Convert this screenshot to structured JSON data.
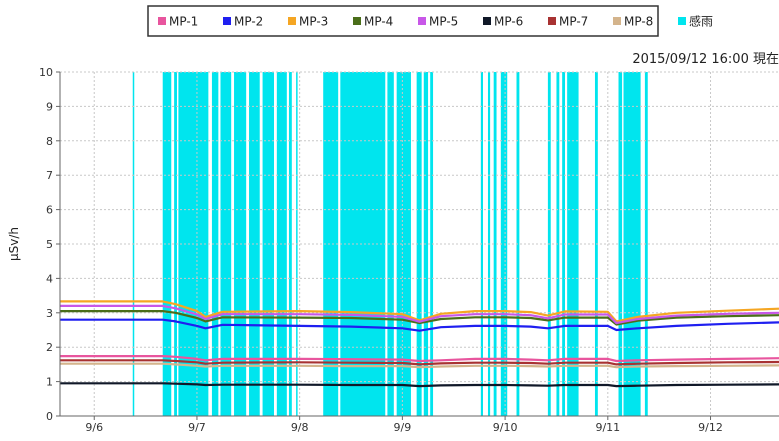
{
  "chart_data": {
    "type": "line",
    "ylabel": "μSv/h",
    "timestamp_label": "2015/09/12 16:00 現在",
    "ylim": [
      0,
      10
    ],
    "yticks": [
      0,
      1,
      2,
      3,
      4,
      5,
      6,
      7,
      8,
      9,
      10
    ],
    "xlim": [
      "2015-09-05T16:00",
      "2015-09-12T16:00"
    ],
    "xticks": [
      {
        "label": "9/6",
        "at": "2015-09-06T00:00"
      },
      {
        "label": "9/7",
        "at": "2015-09-07T00:00"
      },
      {
        "label": "9/8",
        "at": "2015-09-08T00:00"
      },
      {
        "label": "9/9",
        "at": "2015-09-09T00:00"
      },
      {
        "label": "9/10",
        "at": "2015-09-10T00:00"
      },
      {
        "label": "9/11",
        "at": "2015-09-11T00:00"
      },
      {
        "label": "9/12",
        "at": "2015-09-12T00:00"
      }
    ],
    "grid": true,
    "legend_position": "top",
    "x": [
      "2015-09-05T16:00",
      "2015-09-06T16:00",
      "2015-09-06T19:00",
      "2015-09-07T00:00",
      "2015-09-07T02:00",
      "2015-09-07T06:00",
      "2015-09-08T00:00",
      "2015-09-08T12:00",
      "2015-09-09T00:00",
      "2015-09-09T04:00",
      "2015-09-09T09:00",
      "2015-09-09T17:00",
      "2015-09-10T00:00",
      "2015-09-10T06:00",
      "2015-09-10T10:00",
      "2015-09-10T14:00",
      "2015-09-11T00:00",
      "2015-09-11T02:00",
      "2015-09-11T07:00",
      "2015-09-11T16:00",
      "2015-09-12T04:00",
      "2015-09-12T16:00"
    ],
    "series": [
      {
        "name": "MP-1",
        "color": "#e8559e",
        "values": [
          1.74,
          1.74,
          1.72,
          1.66,
          1.62,
          1.66,
          1.66,
          1.65,
          1.64,
          1.6,
          1.62,
          1.66,
          1.66,
          1.64,
          1.62,
          1.66,
          1.66,
          1.6,
          1.62,
          1.64,
          1.66,
          1.68
        ]
      },
      {
        "name": "MP-2",
        "color": "#1f1ff0",
        "values": [
          2.8,
          2.8,
          2.75,
          2.62,
          2.55,
          2.65,
          2.62,
          2.6,
          2.55,
          2.48,
          2.58,
          2.62,
          2.62,
          2.6,
          2.55,
          2.62,
          2.62,
          2.5,
          2.55,
          2.62,
          2.68,
          2.72
        ]
      },
      {
        "name": "MP-3",
        "color": "#f5a623",
        "values": [
          3.33,
          3.33,
          3.25,
          3.05,
          2.88,
          3.03,
          3.05,
          3.02,
          2.96,
          2.78,
          2.97,
          3.05,
          3.05,
          3.02,
          2.92,
          3.04,
          3.03,
          2.75,
          2.88,
          3.0,
          3.06,
          3.12
        ]
      },
      {
        "name": "MP-4",
        "color": "#4a6e1a",
        "values": [
          3.05,
          3.05,
          3.0,
          2.85,
          2.75,
          2.87,
          2.86,
          2.85,
          2.8,
          2.7,
          2.82,
          2.87,
          2.87,
          2.85,
          2.78,
          2.86,
          2.86,
          2.66,
          2.77,
          2.86,
          2.9,
          2.93
        ]
      },
      {
        "name": "MP-5",
        "color": "#c857e8",
        "values": [
          3.2,
          3.2,
          3.13,
          2.95,
          2.82,
          2.96,
          2.96,
          2.94,
          2.88,
          2.74,
          2.9,
          2.96,
          2.96,
          2.93,
          2.84,
          2.95,
          2.95,
          2.7,
          2.82,
          2.92,
          2.97,
          3.0
        ]
      },
      {
        "name": "MP-6",
        "color": "#101828",
        "values": [
          0.95,
          0.95,
          0.94,
          0.92,
          0.9,
          0.91,
          0.91,
          0.9,
          0.9,
          0.87,
          0.89,
          0.9,
          0.9,
          0.89,
          0.88,
          0.9,
          0.9,
          0.87,
          0.88,
          0.9,
          0.91,
          0.92
        ]
      },
      {
        "name": "MP-7",
        "color": "#a83232",
        "values": [
          1.62,
          1.62,
          1.6,
          1.56,
          1.52,
          1.55,
          1.56,
          1.55,
          1.54,
          1.5,
          1.53,
          1.55,
          1.55,
          1.54,
          1.52,
          1.55,
          1.55,
          1.5,
          1.52,
          1.54,
          1.56,
          1.57
        ]
      },
      {
        "name": "MP-8",
        "color": "#d4b48c",
        "values": [
          1.52,
          1.52,
          1.5,
          1.46,
          1.44,
          1.46,
          1.46,
          1.45,
          1.45,
          1.42,
          1.44,
          1.46,
          1.46,
          1.45,
          1.44,
          1.46,
          1.46,
          1.42,
          1.44,
          1.45,
          1.46,
          1.47
        ]
      }
    ],
    "rain": {
      "name": "感雨",
      "color": "#00e5ee",
      "intervals": [
        [
          "2015-09-06T09:00",
          "2015-09-06T09:20"
        ],
        [
          "2015-09-06T16:00",
          "2015-09-06T18:00"
        ],
        [
          "2015-09-06T18:40",
          "2015-09-06T19:20"
        ],
        [
          "2015-09-06T19:40",
          "2015-09-07T02:40"
        ],
        [
          "2015-09-07T03:30",
          "2015-09-07T05:00"
        ],
        [
          "2015-09-07T05:30",
          "2015-09-07T08:00"
        ],
        [
          "2015-09-07T08:40",
          "2015-09-07T11:30"
        ],
        [
          "2015-09-07T12:10",
          "2015-09-07T14:40"
        ],
        [
          "2015-09-07T15:20",
          "2015-09-07T18:00"
        ],
        [
          "2015-09-07T18:40",
          "2015-09-07T21:00"
        ],
        [
          "2015-09-07T21:30",
          "2015-09-07T22:10"
        ],
        [
          "2015-09-07T23:10",
          "2015-09-07T23:30"
        ],
        [
          "2015-09-08T05:30",
          "2015-09-08T09:00"
        ],
        [
          "2015-09-08T09:30",
          "2015-09-08T20:00"
        ],
        [
          "2015-09-08T20:30",
          "2015-09-08T22:00"
        ],
        [
          "2015-09-08T22:40",
          "2015-09-09T02:00"
        ],
        [
          "2015-09-09T03:20",
          "2015-09-09T04:30"
        ],
        [
          "2015-09-09T05:00",
          "2015-09-09T06:00"
        ],
        [
          "2015-09-09T06:30",
          "2015-09-09T07:10"
        ],
        [
          "2015-09-09T18:20",
          "2015-09-09T18:50"
        ],
        [
          "2015-09-09T20:00",
          "2015-09-09T20:30"
        ],
        [
          "2015-09-09T21:20",
          "2015-09-09T22:00"
        ],
        [
          "2015-09-09T23:00",
          "2015-09-10T00:30"
        ],
        [
          "2015-09-10T02:40",
          "2015-09-10T03:20"
        ],
        [
          "2015-09-10T10:00",
          "2015-09-10T10:40"
        ],
        [
          "2015-09-10T12:00",
          "2015-09-10T12:40"
        ],
        [
          "2015-09-10T13:20",
          "2015-09-10T14:00"
        ],
        [
          "2015-09-10T14:30",
          "2015-09-10T17:10"
        ],
        [
          "2015-09-10T21:00",
          "2015-09-10T21:40"
        ],
        [
          "2015-09-11T02:30",
          "2015-09-11T03:20"
        ],
        [
          "2015-09-11T03:40",
          "2015-09-11T07:40"
        ],
        [
          "2015-09-11T08:40",
          "2015-09-11T09:20"
        ]
      ]
    }
  }
}
